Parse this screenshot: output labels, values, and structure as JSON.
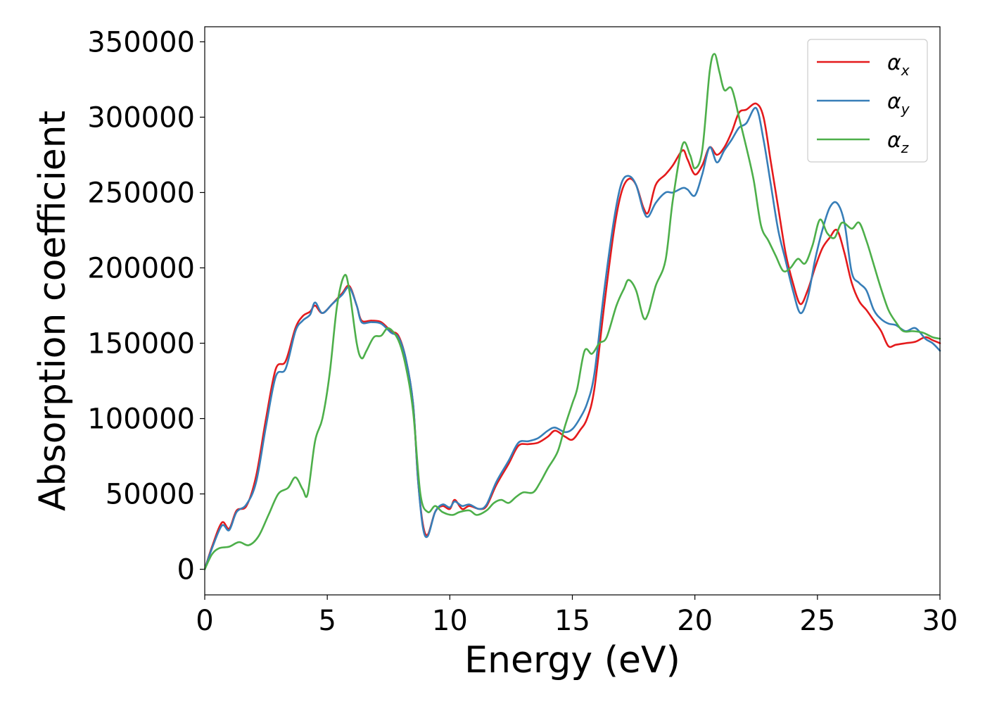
{
  "chart_data": {
    "type": "line",
    "title": "",
    "xlabel": "Energy (eV)",
    "ylabel": "Absorption coefficient",
    "xlim": [
      0,
      30
    ],
    "ylim": [
      -17000,
      360000
    ],
    "xticks": [
      0,
      5,
      10,
      15,
      20,
      25,
      30
    ],
    "xtick_labels": [
      "0",
      "5",
      "10",
      "15",
      "20",
      "25",
      "30"
    ],
    "yticks": [
      0,
      50000,
      100000,
      150000,
      200000,
      250000,
      300000,
      350000
    ],
    "ytick_labels": [
      "0",
      "50000",
      "100000",
      "150000",
      "200000",
      "250000",
      "300000",
      "350000"
    ],
    "grid": false,
    "legend_position": "top-right",
    "series": [
      {
        "name": "α",
        "subscript": "x",
        "color": "#e41a1c",
        "points": [
          [
            0,
            0
          ],
          [
            0.3,
            15000
          ],
          [
            0.7,
            31000
          ],
          [
            1.0,
            27000
          ],
          [
            1.3,
            39000
          ],
          [
            1.7,
            42000
          ],
          [
            2.1,
            62000
          ],
          [
            2.5,
            100000
          ],
          [
            2.9,
            133000
          ],
          [
            3.3,
            138000
          ],
          [
            3.7,
            160000
          ],
          [
            4.0,
            168000
          ],
          [
            4.3,
            171000
          ],
          [
            4.5,
            175000
          ],
          [
            4.8,
            170000
          ],
          [
            5.2,
            176000
          ],
          [
            5.6,
            183000
          ],
          [
            5.9,
            188000
          ],
          [
            6.2,
            175000
          ],
          [
            6.4,
            165000
          ],
          [
            6.8,
            165000
          ],
          [
            7.2,
            164000
          ],
          [
            7.6,
            158000
          ],
          [
            7.9,
            155000
          ],
          [
            8.2,
            140000
          ],
          [
            8.5,
            110000
          ],
          [
            8.7,
            60000
          ],
          [
            8.9,
            30000
          ],
          [
            9.1,
            23000
          ],
          [
            9.4,
            38000
          ],
          [
            9.7,
            42000
          ],
          [
            10.0,
            40000
          ],
          [
            10.2,
            46000
          ],
          [
            10.5,
            40000
          ],
          [
            10.8,
            42000
          ],
          [
            11.2,
            40000
          ],
          [
            11.5,
            42000
          ],
          [
            11.9,
            56000
          ],
          [
            12.4,
            70000
          ],
          [
            12.8,
            82000
          ],
          [
            13.2,
            83000
          ],
          [
            13.6,
            84000
          ],
          [
            14.0,
            88000
          ],
          [
            14.3,
            92000
          ],
          [
            14.7,
            88000
          ],
          [
            15.0,
            86000
          ],
          [
            15.3,
            92000
          ],
          [
            15.6,
            100000
          ],
          [
            15.9,
            120000
          ],
          [
            16.3,
            175000
          ],
          [
            16.7,
            225000
          ],
          [
            17.0,
            250000
          ],
          [
            17.3,
            259000
          ],
          [
            17.6,
            255000
          ],
          [
            17.9,
            240000
          ],
          [
            18.1,
            237000
          ],
          [
            18.4,
            255000
          ],
          [
            18.8,
            262000
          ],
          [
            19.1,
            268000
          ],
          [
            19.5,
            278000
          ],
          [
            19.7,
            272000
          ],
          [
            20.0,
            262000
          ],
          [
            20.3,
            268000
          ],
          [
            20.6,
            280000
          ],
          [
            20.9,
            275000
          ],
          [
            21.2,
            280000
          ],
          [
            21.5,
            290000
          ],
          [
            21.8,
            303000
          ],
          [
            22.1,
            305000
          ],
          [
            22.5,
            309000
          ],
          [
            22.8,
            300000
          ],
          [
            23.1,
            270000
          ],
          [
            23.4,
            240000
          ],
          [
            23.7,
            210000
          ],
          [
            24.0,
            190000
          ],
          [
            24.3,
            176000
          ],
          [
            24.6,
            185000
          ],
          [
            24.9,
            200000
          ],
          [
            25.2,
            213000
          ],
          [
            25.5,
            220000
          ],
          [
            25.8,
            225000
          ],
          [
            26.1,
            210000
          ],
          [
            26.4,
            190000
          ],
          [
            26.7,
            178000
          ],
          [
            27.0,
            172000
          ],
          [
            27.3,
            165000
          ],
          [
            27.6,
            158000
          ],
          [
            27.9,
            148000
          ],
          [
            28.2,
            149000
          ],
          [
            28.6,
            150000
          ],
          [
            29.0,
            151000
          ],
          [
            29.4,
            154000
          ],
          [
            29.7,
            152000
          ],
          [
            30.0,
            150000
          ]
        ]
      },
      {
        "name": "α",
        "subscript": "y",
        "color": "#377eb8",
        "points": [
          [
            0,
            0
          ],
          [
            0.3,
            14000
          ],
          [
            0.7,
            29000
          ],
          [
            1.0,
            26000
          ],
          [
            1.3,
            38000
          ],
          [
            1.7,
            43000
          ],
          [
            2.1,
            58000
          ],
          [
            2.5,
            95000
          ],
          [
            2.9,
            128000
          ],
          [
            3.3,
            133000
          ],
          [
            3.7,
            158000
          ],
          [
            4.0,
            165000
          ],
          [
            4.3,
            169000
          ],
          [
            4.5,
            177000
          ],
          [
            4.8,
            170000
          ],
          [
            5.2,
            176000
          ],
          [
            5.6,
            182000
          ],
          [
            5.9,
            187000
          ],
          [
            6.2,
            175000
          ],
          [
            6.4,
            164000
          ],
          [
            6.8,
            164000
          ],
          [
            7.2,
            163000
          ],
          [
            7.6,
            157000
          ],
          [
            7.9,
            154000
          ],
          [
            8.2,
            140000
          ],
          [
            8.5,
            110000
          ],
          [
            8.7,
            60000
          ],
          [
            8.9,
            28000
          ],
          [
            9.1,
            22000
          ],
          [
            9.4,
            38000
          ],
          [
            9.7,
            43000
          ],
          [
            10.0,
            41000
          ],
          [
            10.2,
            45000
          ],
          [
            10.5,
            42000
          ],
          [
            10.8,
            43000
          ],
          [
            11.2,
            40000
          ],
          [
            11.5,
            43000
          ],
          [
            11.9,
            58000
          ],
          [
            12.4,
            72000
          ],
          [
            12.8,
            84000
          ],
          [
            13.2,
            85000
          ],
          [
            13.6,
            87000
          ],
          [
            14.0,
            92000
          ],
          [
            14.3,
            94000
          ],
          [
            14.7,
            91000
          ],
          [
            15.0,
            93000
          ],
          [
            15.3,
            100000
          ],
          [
            15.6,
            110000
          ],
          [
            15.9,
            130000
          ],
          [
            16.3,
            185000
          ],
          [
            16.7,
            232000
          ],
          [
            17.0,
            256000
          ],
          [
            17.3,
            261000
          ],
          [
            17.6,
            255000
          ],
          [
            17.9,
            238000
          ],
          [
            18.1,
            234000
          ],
          [
            18.4,
            243000
          ],
          [
            18.8,
            250000
          ],
          [
            19.1,
            250000
          ],
          [
            19.5,
            253000
          ],
          [
            19.7,
            252000
          ],
          [
            20.0,
            248000
          ],
          [
            20.3,
            262000
          ],
          [
            20.6,
            280000
          ],
          [
            20.9,
            270000
          ],
          [
            21.2,
            278000
          ],
          [
            21.5,
            285000
          ],
          [
            21.8,
            293000
          ],
          [
            22.1,
            296000
          ],
          [
            22.5,
            306000
          ],
          [
            22.8,
            285000
          ],
          [
            23.1,
            255000
          ],
          [
            23.4,
            225000
          ],
          [
            23.7,
            205000
          ],
          [
            24.0,
            185000
          ],
          [
            24.3,
            170000
          ],
          [
            24.6,
            180000
          ],
          [
            24.9,
            205000
          ],
          [
            25.2,
            225000
          ],
          [
            25.5,
            240000
          ],
          [
            25.8,
            243000
          ],
          [
            26.1,
            230000
          ],
          [
            26.4,
            197000
          ],
          [
            26.7,
            190000
          ],
          [
            27.0,
            185000
          ],
          [
            27.3,
            172000
          ],
          [
            27.6,
            166000
          ],
          [
            27.9,
            163000
          ],
          [
            28.2,
            162000
          ],
          [
            28.6,
            158000
          ],
          [
            29.0,
            160000
          ],
          [
            29.4,
            153000
          ],
          [
            29.7,
            150000
          ],
          [
            30.0,
            145000
          ]
        ]
      },
      {
        "name": "α",
        "subscript": "z",
        "color": "#4daf4a",
        "points": [
          [
            0,
            0
          ],
          [
            0.3,
            10000
          ],
          [
            0.6,
            14000
          ],
          [
            1.0,
            15000
          ],
          [
            1.4,
            18000
          ],
          [
            1.8,
            16000
          ],
          [
            2.2,
            22000
          ],
          [
            2.6,
            36000
          ],
          [
            3.0,
            50000
          ],
          [
            3.4,
            54000
          ],
          [
            3.7,
            61000
          ],
          [
            4.0,
            53000
          ],
          [
            4.2,
            50000
          ],
          [
            4.5,
            85000
          ],
          [
            4.8,
            100000
          ],
          [
            5.1,
            130000
          ],
          [
            5.4,
            175000
          ],
          [
            5.7,
            195000
          ],
          [
            5.9,
            185000
          ],
          [
            6.2,
            150000
          ],
          [
            6.4,
            140000
          ],
          [
            6.6,
            145000
          ],
          [
            6.9,
            154000
          ],
          [
            7.2,
            155000
          ],
          [
            7.5,
            160000
          ],
          [
            7.9,
            152000
          ],
          [
            8.2,
            135000
          ],
          [
            8.5,
            105000
          ],
          [
            8.8,
            50000
          ],
          [
            9.1,
            38000
          ],
          [
            9.4,
            42000
          ],
          [
            9.7,
            38000
          ],
          [
            10.1,
            36000
          ],
          [
            10.4,
            38000
          ],
          [
            10.8,
            39000
          ],
          [
            11.1,
            36000
          ],
          [
            11.5,
            39000
          ],
          [
            11.8,
            44000
          ],
          [
            12.1,
            46000
          ],
          [
            12.4,
            44000
          ],
          [
            12.7,
            48000
          ],
          [
            13.0,
            51000
          ],
          [
            13.4,
            51000
          ],
          [
            13.7,
            58000
          ],
          [
            14.0,
            67000
          ],
          [
            14.4,
            78000
          ],
          [
            14.7,
            95000
          ],
          [
            15.0,
            110000
          ],
          [
            15.2,
            120000
          ],
          [
            15.5,
            145000
          ],
          [
            15.8,
            143000
          ],
          [
            16.1,
            150000
          ],
          [
            16.4,
            154000
          ],
          [
            16.8,
            175000
          ],
          [
            17.1,
            186000
          ],
          [
            17.3,
            192000
          ],
          [
            17.6,
            185000
          ],
          [
            17.9,
            167000
          ],
          [
            18.1,
            170000
          ],
          [
            18.4,
            188000
          ],
          [
            18.8,
            205000
          ],
          [
            19.1,
            245000
          ],
          [
            19.5,
            282000
          ],
          [
            19.8,
            275000
          ],
          [
            20.0,
            266000
          ],
          [
            20.3,
            278000
          ],
          [
            20.6,
            330000
          ],
          [
            20.8,
            342000
          ],
          [
            21.0,
            330000
          ],
          [
            21.2,
            318000
          ],
          [
            21.5,
            319000
          ],
          [
            21.8,
            300000
          ],
          [
            22.1,
            280000
          ],
          [
            22.4,
            258000
          ],
          [
            22.7,
            228000
          ],
          [
            23.0,
            218000
          ],
          [
            23.3,
            208000
          ],
          [
            23.6,
            198000
          ],
          [
            23.9,
            200000
          ],
          [
            24.2,
            206000
          ],
          [
            24.5,
            203000
          ],
          [
            24.8,
            215000
          ],
          [
            25.1,
            232000
          ],
          [
            25.4,
            223000
          ],
          [
            25.7,
            220000
          ],
          [
            26.0,
            230000
          ],
          [
            26.4,
            226000
          ],
          [
            26.7,
            230000
          ],
          [
            27.0,
            218000
          ],
          [
            27.3,
            202000
          ],
          [
            27.6,
            186000
          ],
          [
            27.9,
            172000
          ],
          [
            28.2,
            164000
          ],
          [
            28.5,
            158000
          ],
          [
            28.9,
            158000
          ],
          [
            29.3,
            157000
          ],
          [
            29.7,
            154000
          ],
          [
            30.0,
            153000
          ]
        ]
      }
    ]
  }
}
